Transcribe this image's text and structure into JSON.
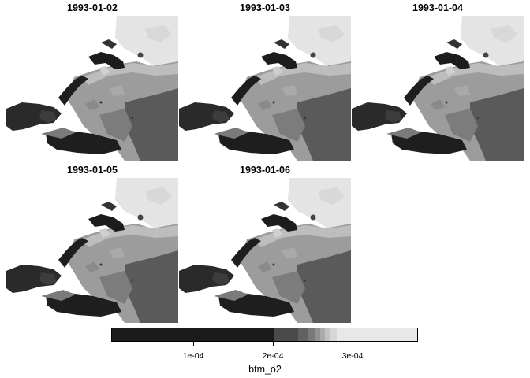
{
  "panels": [
    {
      "date": "1993-01-02"
    },
    {
      "date": "1993-01-03"
    },
    {
      "date": "1993-01-04"
    },
    {
      "date": "1993-01-05"
    },
    {
      "date": "1993-01-06"
    }
  ],
  "legend": {
    "title": "btm_o2",
    "ticks": [
      {
        "value": 0.0001,
        "label": "1e-04"
      },
      {
        "value": 0.0002,
        "label": "2e-04"
      },
      {
        "value": 0.0003,
        "label": "3e-04"
      }
    ],
    "range": [
      1e-05,
      0.00038
    ]
  },
  "colors": {
    "low": "#1c1c1c",
    "mid": "#5c5c5c",
    "high": "#e6e6e6"
  }
}
